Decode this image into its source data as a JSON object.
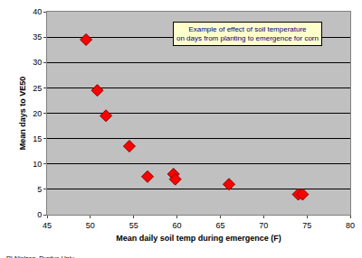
{
  "chart_data": {
    "type": "scatter",
    "x_label": "Mean daily soil temp during emergence (F)",
    "y_label": "Mean days to VE50",
    "x": [
      49.5,
      50.8,
      51.8,
      54.5,
      56.6,
      59.6,
      59.8,
      66,
      74,
      74.5
    ],
    "values": [
      34.5,
      24.5,
      19.5,
      13.5,
      7.5,
      8,
      7,
      6,
      4,
      4
    ],
    "color": "#ff0000",
    "marker": "diamond",
    "xlim": [
      45,
      80
    ],
    "xticks": [
      45,
      50,
      55,
      60,
      65,
      70,
      75,
      80
    ],
    "ylim": [
      0,
      40
    ],
    "yticks": [
      0,
      5,
      10,
      15,
      20,
      25,
      30,
      35,
      40
    ],
    "grid": true,
    "annotations": [
      "Example of effect of soil temperature\non days from planting to emergence for corn",
      "RLNielsen, Purdue Univ."
    ]
  }
}
